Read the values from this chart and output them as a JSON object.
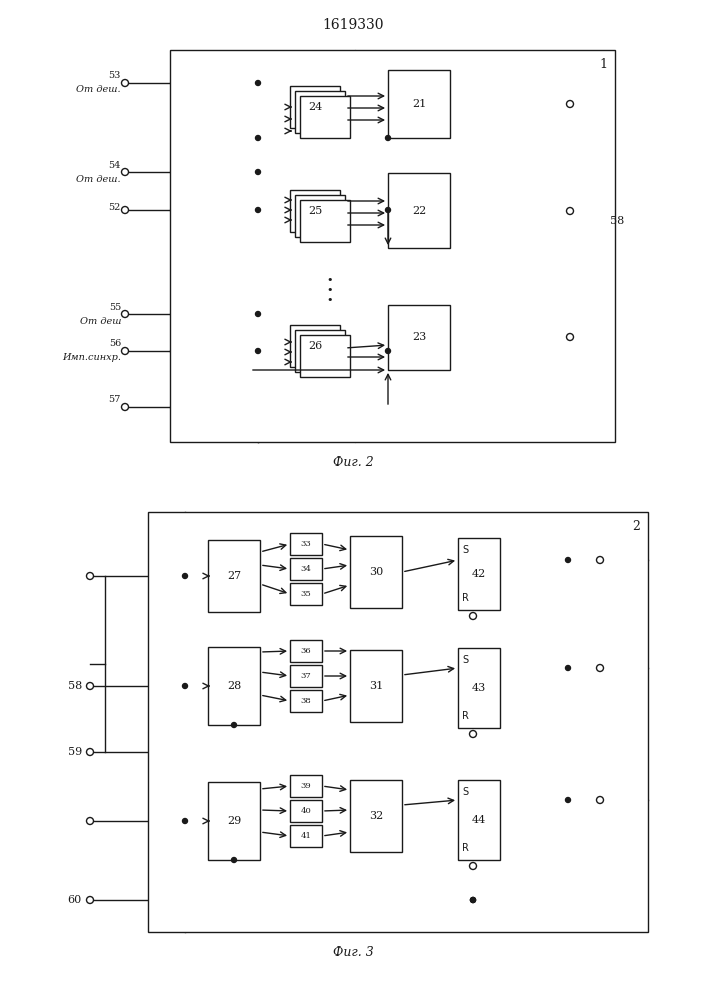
{
  "title": "1619330",
  "caption1": "Фиг. 2",
  "caption2": "Фиг. 3",
  "bg_color": "#ffffff",
  "lc": "#1a1a1a"
}
